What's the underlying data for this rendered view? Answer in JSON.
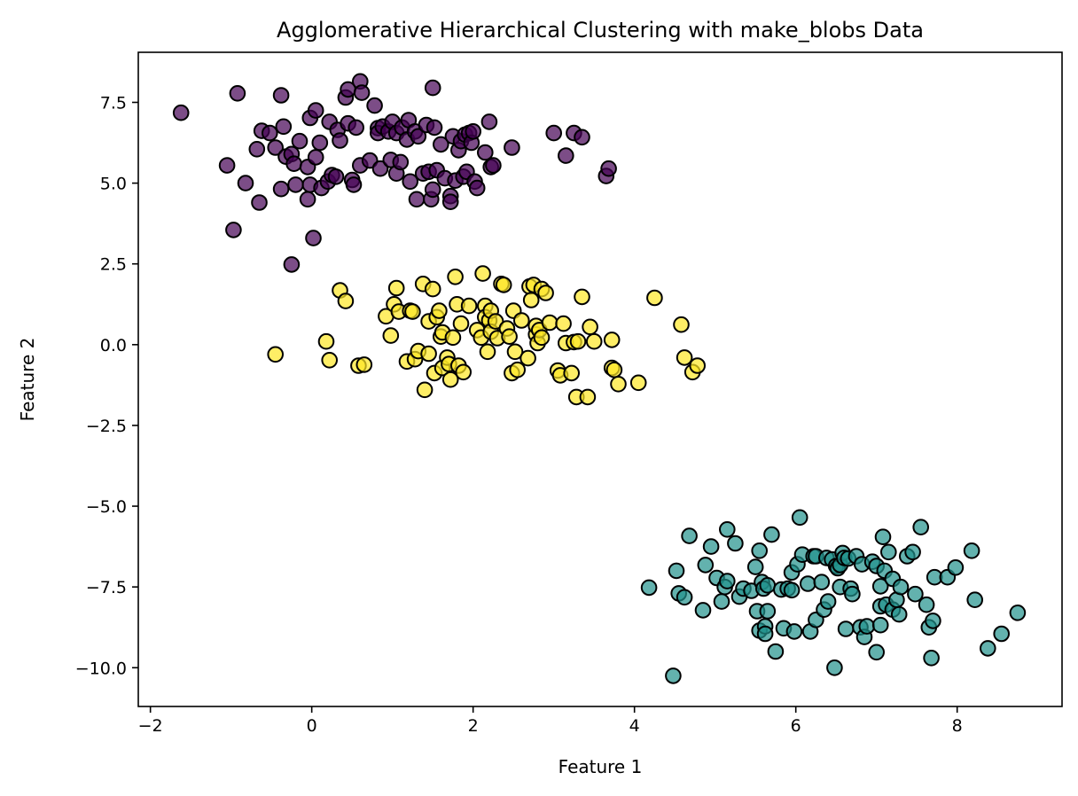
{
  "chart_data": {
    "type": "scatter",
    "title": "Agglomerative Hierarchical Clustering with make_blobs Data",
    "xlabel": "Feature 1",
    "ylabel": "Feature 2",
    "xlim": [
      -2.15,
      9.3
    ],
    "ylim": [
      -11.2,
      9.05
    ],
    "xticks": [
      -2,
      0,
      2,
      4,
      6,
      8
    ],
    "xtick_labels": [
      "−2",
      "0",
      "2",
      "4",
      "6",
      "8"
    ],
    "yticks": [
      7.5,
      5.0,
      2.5,
      0.0,
      -2.5,
      -5.0,
      -7.5,
      -10.0
    ],
    "ytick_labels": [
      "7.5",
      "5.0",
      "2.5",
      "0.0",
      "−2.5",
      "−5.0",
      "−7.5",
      "−10.0"
    ],
    "grid": false,
    "legend": "none",
    "series": [
      {
        "color": "#440154",
        "points": [
          [
            -1.62,
            7.18
          ],
          [
            -0.92,
            7.78
          ],
          [
            -1.05,
            5.55
          ],
          [
            -0.82,
            5.0
          ],
          [
            -0.97,
            3.55
          ],
          [
            -0.65,
            4.4
          ],
          [
            -0.68,
            6.05
          ],
          [
            -0.62,
            6.62
          ],
          [
            -0.52,
            6.55
          ],
          [
            -0.45,
            6.1
          ],
          [
            -0.38,
            7.72
          ],
          [
            -0.35,
            6.75
          ],
          [
            -0.38,
            4.82
          ],
          [
            -0.32,
            5.82
          ],
          [
            -0.25,
            5.9
          ],
          [
            -0.22,
            5.6
          ],
          [
            -0.2,
            4.95
          ],
          [
            -0.15,
            6.3
          ],
          [
            -0.25,
            2.48
          ],
          [
            -0.05,
            5.5
          ],
          [
            -0.02,
            7.02
          ],
          [
            -0.05,
            4.5
          ],
          [
            -0.02,
            4.95
          ],
          [
            0.02,
            3.3
          ],
          [
            0.05,
            7.25
          ],
          [
            0.05,
            5.8
          ],
          [
            0.1,
            6.25
          ],
          [
            0.12,
            4.85
          ],
          [
            0.2,
            5.05
          ],
          [
            0.22,
            6.9
          ],
          [
            0.25,
            5.25
          ],
          [
            0.3,
            5.2
          ],
          [
            0.32,
            6.65
          ],
          [
            0.35,
            6.32
          ],
          [
            0.42,
            7.65
          ],
          [
            0.45,
            7.9
          ],
          [
            0.45,
            6.85
          ],
          [
            0.5,
            5.1
          ],
          [
            0.52,
            4.95
          ],
          [
            0.55,
            6.72
          ],
          [
            0.6,
            8.15
          ],
          [
            0.62,
            7.8
          ],
          [
            0.6,
            5.55
          ],
          [
            0.72,
            5.7
          ],
          [
            0.78,
            7.4
          ],
          [
            0.82,
            6.7
          ],
          [
            0.82,
            6.55
          ],
          [
            0.85,
            5.45
          ],
          [
            0.88,
            6.75
          ],
          [
            0.95,
            6.6
          ],
          [
            0.98,
            5.72
          ],
          [
            1.0,
            6.9
          ],
          [
            1.05,
            6.55
          ],
          [
            1.05,
            5.3
          ],
          [
            1.1,
            5.65
          ],
          [
            1.12,
            6.72
          ],
          [
            1.18,
            6.35
          ],
          [
            1.2,
            6.95
          ],
          [
            1.22,
            5.05
          ],
          [
            1.28,
            6.6
          ],
          [
            1.3,
            4.5
          ],
          [
            1.32,
            6.45
          ],
          [
            1.38,
            5.3
          ],
          [
            1.42,
            6.8
          ],
          [
            1.45,
            5.35
          ],
          [
            1.48,
            4.5
          ],
          [
            1.5,
            4.8
          ],
          [
            1.5,
            7.95
          ],
          [
            1.52,
            6.72
          ],
          [
            1.55,
            5.4
          ],
          [
            1.6,
            6.2
          ],
          [
            1.65,
            5.15
          ],
          [
            1.72,
            4.6
          ],
          [
            1.72,
            4.42
          ],
          [
            1.75,
            6.45
          ],
          [
            1.78,
            5.08
          ],
          [
            1.82,
            6.02
          ],
          [
            1.85,
            6.3
          ],
          [
            1.88,
            5.2
          ],
          [
            1.9,
            6.5
          ],
          [
            1.92,
            5.35
          ],
          [
            1.95,
            6.55
          ],
          [
            1.98,
            6.25
          ],
          [
            2.0,
            6.6
          ],
          [
            2.02,
            5.05
          ],
          [
            2.05,
            4.85
          ],
          [
            2.15,
            5.95
          ],
          [
            2.2,
            6.9
          ],
          [
            2.22,
            5.5
          ],
          [
            2.25,
            5.55
          ],
          [
            2.48,
            6.1
          ],
          [
            3.0,
            6.55
          ],
          [
            3.15,
            5.85
          ],
          [
            3.25,
            6.55
          ],
          [
            3.35,
            6.42
          ],
          [
            3.65,
            5.22
          ],
          [
            3.68,
            5.45
          ]
        ]
      },
      {
        "color": "#fde725",
        "points": [
          [
            -0.45,
            -0.3
          ],
          [
            0.18,
            0.1
          ],
          [
            0.22,
            -0.48
          ],
          [
            0.35,
            1.68
          ],
          [
            0.42,
            1.35
          ],
          [
            0.58,
            -0.65
          ],
          [
            0.65,
            -0.62
          ],
          [
            0.92,
            0.88
          ],
          [
            0.98,
            0.28
          ],
          [
            1.02,
            1.25
          ],
          [
            1.05,
            1.75
          ],
          [
            1.08,
            1.02
          ],
          [
            1.18,
            -0.52
          ],
          [
            1.22,
            1.05
          ],
          [
            1.25,
            1.02
          ],
          [
            1.28,
            -0.45
          ],
          [
            1.32,
            -0.2
          ],
          [
            1.38,
            1.88
          ],
          [
            1.4,
            -1.4
          ],
          [
            1.45,
            0.72
          ],
          [
            1.45,
            -0.28
          ],
          [
            1.5,
            1.72
          ],
          [
            1.52,
            -0.88
          ],
          [
            1.55,
            0.85
          ],
          [
            1.58,
            1.05
          ],
          [
            1.6,
            0.25
          ],
          [
            1.62,
            0.38
          ],
          [
            1.62,
            -0.72
          ],
          [
            1.68,
            -0.4
          ],
          [
            1.7,
            -0.6
          ],
          [
            1.72,
            -1.08
          ],
          [
            1.75,
            0.22
          ],
          [
            1.78,
            2.1
          ],
          [
            1.8,
            1.25
          ],
          [
            1.82,
            -0.65
          ],
          [
            1.85,
            0.65
          ],
          [
            1.88,
            -0.85
          ],
          [
            1.95,
            1.2
          ],
          [
            2.05,
            0.45
          ],
          [
            2.1,
            0.22
          ],
          [
            2.12,
            2.2
          ],
          [
            2.15,
            1.2
          ],
          [
            2.15,
            0.85
          ],
          [
            2.18,
            -0.22
          ],
          [
            2.2,
            0.75
          ],
          [
            2.22,
            0.4
          ],
          [
            2.22,
            1.05
          ],
          [
            2.28,
            0.72
          ],
          [
            2.3,
            0.2
          ],
          [
            2.35,
            1.88
          ],
          [
            2.38,
            1.85
          ],
          [
            2.42,
            0.5
          ],
          [
            2.45,
            0.25
          ],
          [
            2.48,
            -0.88
          ],
          [
            2.5,
            1.05
          ],
          [
            2.52,
            -0.22
          ],
          [
            2.55,
            -0.78
          ],
          [
            2.6,
            0.75
          ],
          [
            2.68,
            -0.42
          ],
          [
            2.7,
            1.8
          ],
          [
            2.72,
            1.38
          ],
          [
            2.75,
            1.85
          ],
          [
            2.78,
            0.32
          ],
          [
            2.78,
            0.58
          ],
          [
            2.8,
            0.05
          ],
          [
            2.82,
            0.45
          ],
          [
            2.85,
            0.22
          ],
          [
            2.85,
            1.72
          ],
          [
            2.9,
            1.6
          ],
          [
            2.95,
            0.68
          ],
          [
            3.05,
            -0.8
          ],
          [
            3.08,
            -0.95
          ],
          [
            3.12,
            0.65
          ],
          [
            3.15,
            0.05
          ],
          [
            3.22,
            -0.88
          ],
          [
            3.25,
            0.08
          ],
          [
            3.28,
            -1.62
          ],
          [
            3.3,
            0.1
          ],
          [
            3.35,
            1.48
          ],
          [
            3.42,
            -1.62
          ],
          [
            3.45,
            0.55
          ],
          [
            3.5,
            0.1
          ],
          [
            3.72,
            -0.72
          ],
          [
            3.72,
            0.15
          ],
          [
            3.75,
            -0.78
          ],
          [
            3.8,
            -1.22
          ],
          [
            4.05,
            -1.18
          ],
          [
            4.25,
            1.45
          ],
          [
            4.58,
            0.62
          ],
          [
            4.62,
            -0.4
          ],
          [
            4.72,
            -0.85
          ],
          [
            4.78,
            -0.65
          ]
        ]
      },
      {
        "color": "#21918c",
        "points": [
          [
            4.18,
            -7.52
          ],
          [
            4.48,
            -10.25
          ],
          [
            4.52,
            -7.0
          ],
          [
            4.55,
            -7.7
          ],
          [
            4.62,
            -7.82
          ],
          [
            4.68,
            -5.92
          ],
          [
            4.85,
            -8.22
          ],
          [
            4.88,
            -6.82
          ],
          [
            4.95,
            -6.25
          ],
          [
            5.02,
            -7.22
          ],
          [
            5.08,
            -7.95
          ],
          [
            5.12,
            -7.5
          ],
          [
            5.15,
            -5.72
          ],
          [
            5.15,
            -7.32
          ],
          [
            5.25,
            -6.15
          ],
          [
            5.3,
            -7.8
          ],
          [
            5.35,
            -7.55
          ],
          [
            5.45,
            -7.62
          ],
          [
            5.5,
            -6.88
          ],
          [
            5.52,
            -8.25
          ],
          [
            5.55,
            -6.38
          ],
          [
            5.55,
            -8.85
          ],
          [
            5.58,
            -7.35
          ],
          [
            5.6,
            -7.55
          ],
          [
            5.62,
            -8.72
          ],
          [
            5.62,
            -8.95
          ],
          [
            5.65,
            -8.25
          ],
          [
            5.65,
            -7.45
          ],
          [
            5.7,
            -5.88
          ],
          [
            5.75,
            -9.5
          ],
          [
            5.82,
            -7.58
          ],
          [
            5.85,
            -8.78
          ],
          [
            5.9,
            -7.55
          ],
          [
            5.95,
            -7.6
          ],
          [
            5.95,
            -7.05
          ],
          [
            5.98,
            -8.88
          ],
          [
            6.02,
            -6.8
          ],
          [
            6.05,
            -5.35
          ],
          [
            6.08,
            -6.5
          ],
          [
            6.15,
            -7.4
          ],
          [
            6.18,
            -8.88
          ],
          [
            6.22,
            -6.55
          ],
          [
            6.25,
            -8.52
          ],
          [
            6.25,
            -6.55
          ],
          [
            6.32,
            -7.35
          ],
          [
            6.35,
            -8.2
          ],
          [
            6.38,
            -6.6
          ],
          [
            6.4,
            -7.95
          ],
          [
            6.45,
            -6.65
          ],
          [
            6.48,
            -10.0
          ],
          [
            6.5,
            -6.85
          ],
          [
            6.52,
            -6.92
          ],
          [
            6.55,
            -7.5
          ],
          [
            6.55,
            -6.82
          ],
          [
            6.58,
            -6.45
          ],
          [
            6.6,
            -6.6
          ],
          [
            6.62,
            -8.8
          ],
          [
            6.65,
            -6.62
          ],
          [
            6.68,
            -7.55
          ],
          [
            6.7,
            -7.72
          ],
          [
            6.75,
            -6.55
          ],
          [
            6.8,
            -8.75
          ],
          [
            6.82,
            -6.8
          ],
          [
            6.85,
            -9.05
          ],
          [
            6.88,
            -8.72
          ],
          [
            6.95,
            -6.72
          ],
          [
            7.0,
            -6.85
          ],
          [
            7.0,
            -9.52
          ],
          [
            7.05,
            -8.1
          ],
          [
            7.05,
            -8.68
          ],
          [
            7.05,
            -7.48
          ],
          [
            7.08,
            -5.95
          ],
          [
            7.1,
            -7.0
          ],
          [
            7.12,
            -8.05
          ],
          [
            7.15,
            -6.42
          ],
          [
            7.2,
            -7.25
          ],
          [
            7.2,
            -8.2
          ],
          [
            7.25,
            -7.9
          ],
          [
            7.28,
            -8.35
          ],
          [
            7.3,
            -7.5
          ],
          [
            7.38,
            -6.55
          ],
          [
            7.45,
            -6.42
          ],
          [
            7.48,
            -7.72
          ],
          [
            7.55,
            -5.65
          ],
          [
            7.62,
            -8.05
          ],
          [
            7.65,
            -8.75
          ],
          [
            7.68,
            -9.7
          ],
          [
            7.7,
            -8.55
          ],
          [
            7.72,
            -7.2
          ],
          [
            7.88,
            -7.2
          ],
          [
            7.98,
            -6.9
          ],
          [
            8.18,
            -6.38
          ],
          [
            8.22,
            -7.9
          ],
          [
            8.38,
            -9.4
          ],
          [
            8.55,
            -8.95
          ],
          [
            8.75,
            -8.3
          ]
        ]
      }
    ]
  }
}
